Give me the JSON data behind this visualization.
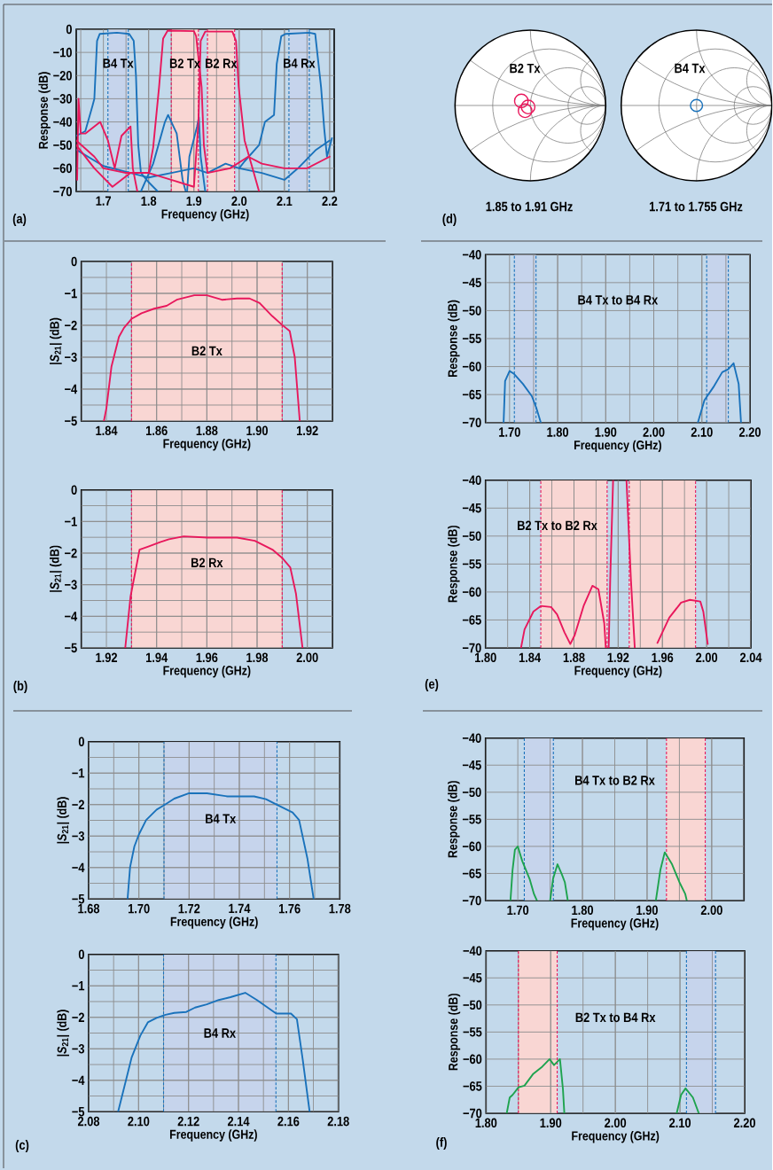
{
  "chart_data": [
    {
      "type": "line",
      "xlabel": "Frequency (GHz)",
      "ylabel": "Response (dB)",
      "xlim": [
        1.64,
        2.21
      ],
      "ylim": [
        -70,
        0
      ],
      "grid": true,
      "xticks": [
        1.7,
        1.8,
        1.9,
        {
          "value": 2,
          "label": "2.0"
        },
        2.1,
        2.2
      ],
      "yticks": [
        0,
        {
          "value": -10,
          "label": "−10"
        },
        {
          "value": -20,
          "label": "−20"
        },
        {
          "value": -30,
          "label": "−30"
        },
        {
          "value": -40,
          "label": "−40"
        },
        {
          "value": -50,
          "label": "−50"
        },
        {
          "value": -60,
          "label": "−60"
        },
        {
          "value": -70,
          "label": "−70"
        }
      ],
      "bands": [
        {
          "axis": "x",
          "from": 1.71,
          "to": 1.755,
          "label": "B4 Tx",
          "color": "#c6d4ec"
        },
        {
          "axis": "x",
          "from": 1.85,
          "to": 1.91,
          "label": "B2 Tx",
          "color": "#f9d6d3"
        },
        {
          "axis": "x",
          "from": 1.93,
          "to": 1.99,
          "label": "B2 Rx",
          "color": "#f9d6d3"
        },
        {
          "axis": "x",
          "from": 2.11,
          "to": 2.155,
          "label": "B4 Rx",
          "color": "#c6d4ec"
        }
      ],
      "ref_lines": [
        {
          "axis": "x",
          "value": 1.71,
          "color": "#1a72bb",
          "line_style": "dashed"
        },
        {
          "axis": "x",
          "value": 1.755,
          "color": "#1a72bb",
          "line_style": "dashed"
        },
        {
          "axis": "x",
          "value": 1.85,
          "color": "#e8185c",
          "line_style": "dashed"
        },
        {
          "axis": "x",
          "value": 1.91,
          "color": "#e8185c",
          "line_style": "dashed"
        },
        {
          "axis": "x",
          "value": 1.93,
          "color": "#e8185c",
          "line_style": "dashed"
        },
        {
          "axis": "x",
          "value": 1.99,
          "color": "#e8185c",
          "line_style": "dashed"
        },
        {
          "axis": "x",
          "value": 2.11,
          "color": "#1a72bb",
          "line_style": "dashed"
        },
        {
          "axis": "x",
          "value": 2.155,
          "color": "#1a72bb",
          "line_style": "dashed"
        }
      ],
      "series": [
        {
          "color": "#1a72bb",
          "x": [
            1.64,
            1.66,
            1.676,
            1.68,
            1.686,
            1.692,
            1.73,
            1.757,
            1.767,
            1.772,
            1.777,
            1.783,
            1.8,
            1.82
          ],
          "values": [
            -46,
            -44,
            -33,
            -30,
            -5,
            -2,
            -1.5,
            -2,
            -5,
            -20,
            -50,
            -62,
            -66,
            -70
          ]
        },
        {
          "color": "#1a72bb",
          "x": [
            1.64,
            1.7,
            1.76,
            1.8,
            1.85,
            1.9,
            1.93,
            1.97,
            2.0,
            2.012,
            2.044,
            2.057,
            2.077,
            2.083,
            2.093,
            2.103,
            2.155,
            2.168,
            2.181,
            2.188,
            2.194,
            2.205
          ],
          "values": [
            -52,
            -59,
            -62,
            -64,
            -62,
            -60,
            -62,
            -58,
            -60,
            -57,
            -50,
            -40,
            -37,
            -15,
            -3,
            -2,
            -1.5,
            -2,
            -25,
            -43,
            -55,
            -47
          ]
        },
        {
          "color": "#1a72bb",
          "x": [
            1.783,
            1.81,
            1.836,
            1.843,
            1.862,
            1.875,
            1.882
          ],
          "values": [
            -70,
            -58,
            -40,
            -37,
            -45,
            -65,
            -70
          ]
        },
        {
          "color": "#1a72bb",
          "x": [
            1.885,
            1.89,
            1.907,
            1.911,
            1.915,
            1.925
          ],
          "values": [
            -70,
            -55,
            -42,
            -38,
            -55,
            -70
          ]
        },
        {
          "color": "#1a72bb",
          "x": [
            2.0,
            2.05,
            2.1,
            2.13,
            2.17,
            2.2
          ],
          "values": [
            -60,
            -62,
            -65,
            -60,
            -52,
            -48
          ]
        },
        {
          "color": "#e8185c",
          "x": [
            1.64,
            1.68,
            1.7,
            1.75,
            1.8,
            1.81,
            1.823,
            1.832,
            1.842,
            1.9,
            1.905,
            1.917,
            1.922,
            1.93,
            1.98,
            2.02,
            2.05,
            2.1,
            2.15,
            2.2
          ],
          "values": [
            -48,
            -55,
            -60,
            -62,
            -62,
            -51,
            -25,
            -4,
            -0.6,
            -0.8,
            -3,
            -25,
            -50,
            -62,
            -60,
            -55,
            -58,
            -60,
            -60,
            -55
          ]
        },
        {
          "color": "#e8185c",
          "x": [
            1.64,
            1.68,
            1.72,
            1.76,
            1.8,
            1.85,
            1.9,
            1.91,
            1.915,
            1.925,
            1.985,
            1.993,
            1.999,
            2.012,
            2.031,
            2.044
          ],
          "values": [
            -50,
            -60,
            -68,
            -62,
            -62,
            -65,
            -68,
            -40,
            -5,
            -1,
            -1,
            -5,
            -25,
            -48,
            -61,
            -70
          ]
        },
        {
          "color": "#e8185c",
          "x": [
            1.642,
            1.645,
            1.65,
            1.66,
            1.693,
            1.71,
            1.725,
            1.74,
            1.76,
            1.765,
            1.775
          ],
          "values": [
            -65,
            -30,
            -45,
            -45,
            -40,
            -48,
            -60,
            -46,
            -42,
            -60,
            -70
          ]
        }
      ],
      "annotations": [
        "(a)"
      ]
    },
    {
      "type": "other",
      "annotations": [
        "B2 Tx",
        "1.85 to 1.91 GHz",
        "B4 Tx",
        "1.71 to 1.755 GHz",
        "(d)"
      ]
    },
    {
      "type": "line",
      "xlabel": "Frequency (GHz)",
      "ylabel": "|*S*$_{21}$| (dB)",
      "xlim": [
        1.83,
        1.93
      ],
      "ylim": [
        -5,
        0
      ],
      "grid": true,
      "xticks": [
        1.84,
        1.86,
        1.88,
        {
          "value": 1.9,
          "label": "1.90"
        },
        1.92
      ],
      "yticks": [
        0,
        {
          "value": -1,
          "label": "−1"
        },
        {
          "value": -2,
          "label": "−2"
        },
        {
          "value": -3,
          "label": "−3"
        },
        {
          "value": -4,
          "label": "−4"
        },
        {
          "value": -5,
          "label": "−5"
        }
      ],
      "bands": [
        {
          "axis": "x",
          "from": 1.85,
          "to": 1.91,
          "label": "B2 Tx",
          "color": "#f9d6d3"
        }
      ],
      "ref_lines": [
        {
          "axis": "x",
          "value": 1.85,
          "color": "#e8185c",
          "line_style": "dashed"
        },
        {
          "axis": "x",
          "value": 1.91,
          "color": "#e8185c",
          "line_style": "dashed"
        }
      ],
      "series": [
        {
          "color": "#e8185c",
          "x": [
            1.839,
            1.84,
            1.842,
            1.845,
            1.847,
            1.85,
            1.854,
            1.859,
            1.864,
            1.868,
            1.875,
            1.88,
            1.886,
            1.892,
            1.897,
            1.901,
            1.906,
            1.91,
            1.913,
            1.915,
            1.917
          ],
          "values": [
            -5,
            -4.6,
            -3.3,
            -2.36,
            -2.08,
            -1.8,
            -1.62,
            -1.48,
            -1.39,
            -1.2,
            -1.06,
            -1.06,
            -1.2,
            -1.16,
            -1.16,
            -1.3,
            -1.71,
            -1.99,
            -2.18,
            -3.0,
            -5
          ]
        }
      ]
    },
    {
      "type": "line",
      "xlabel": "Frequency (GHz)",
      "ylabel": "|*S*$_{21}$| (dB)",
      "xlim": [
        1.91,
        2.01
      ],
      "ylim": [
        -5,
        0
      ],
      "grid": true,
      "xticks": [
        1.92,
        1.94,
        1.96,
        1.98,
        {
          "value": 2,
          "label": "2.00"
        }
      ],
      "yticks": [
        0,
        {
          "value": -1,
          "label": "−1"
        },
        {
          "value": -2,
          "label": "−2"
        },
        {
          "value": -3,
          "label": "−3"
        },
        {
          "value": -4,
          "label": "−4"
        },
        {
          "value": -5,
          "label": "−5"
        }
      ],
      "bands": [
        {
          "axis": "x",
          "from": 1.93,
          "to": 1.99,
          "label": "B2 Rx",
          "color": "#f9d6d3"
        }
      ],
      "ref_lines": [
        {
          "axis": "x",
          "value": 1.93,
          "color": "#e8185c",
          "line_style": "dashed"
        },
        {
          "axis": "x",
          "value": 1.99,
          "color": "#e8185c",
          "line_style": "dashed"
        }
      ],
      "series": [
        {
          "color": "#e8185c",
          "x": [
            1.9275,
            1.9296,
            1.9332,
            1.9367,
            1.9414,
            1.9449,
            1.9508,
            1.9602,
            1.972,
            1.9791,
            1.9861,
            1.9902,
            1.9932,
            1.9955,
            1.9981
          ],
          "values": [
            -5,
            -3.38,
            -1.89,
            -1.79,
            -1.65,
            -1.56,
            -1.47,
            -1.51,
            -1.51,
            -1.61,
            -1.89,
            -2.17,
            -2.45,
            -3.29,
            -5
          ]
        }
      ],
      "annotations": [
        "(b)"
      ]
    },
    {
      "type": "line",
      "xlabel": "Frequency (GHz)",
      "ylabel": "Response (dB)",
      "xlim": [
        1.65,
        2.2
      ],
      "ylim": [
        -70,
        -40
      ],
      "grid": true,
      "xticks": [
        {
          "value": 1.7,
          "label": "1.70"
        },
        {
          "value": 1.8,
          "label": "1.80"
        },
        {
          "value": 1.9,
          "label": "1.90"
        },
        {
          "value": 2,
          "label": "2.00"
        },
        {
          "value": 2.1,
          "label": "2.10"
        },
        {
          "value": 2.2,
          "label": "2.20"
        }
      ],
      "yticks": [
        {
          "value": -40,
          "label": "−40"
        },
        {
          "value": -45,
          "label": "−45"
        },
        {
          "value": -50,
          "label": "−50"
        },
        {
          "value": -55,
          "label": "−55"
        },
        {
          "value": -60,
          "label": "−60"
        },
        {
          "value": -65,
          "label": "−65"
        },
        {
          "value": -70,
          "label": "−70"
        }
      ],
      "bands": [
        {
          "axis": "x",
          "from": 1.71,
          "to": 1.755,
          "color": "#c6d4ec"
        },
        {
          "axis": "x",
          "from": 2.11,
          "to": 2.155,
          "color": "#c6d4ec"
        }
      ],
      "ref_lines": [
        {
          "axis": "x",
          "value": 1.71,
          "color": "#1a72bb",
          "line_style": "dashed"
        },
        {
          "axis": "x",
          "value": 1.755,
          "color": "#1a72bb",
          "line_style": "dashed"
        },
        {
          "axis": "x",
          "value": 2.11,
          "color": "#1a72bb",
          "line_style": "dashed"
        },
        {
          "axis": "x",
          "value": 2.155,
          "color": "#1a72bb",
          "line_style": "dashed"
        }
      ],
      "series": [
        {
          "color": "#1a72bb",
          "x": [
            1.6876,
            1.6907,
            1.7,
            1.7093,
            1.7278,
            1.7464,
            1.7557,
            1.765,
            1.77,
            2.0917,
            2.1053,
            2.1238,
            2.1424,
            2.1547,
            2.1659,
            2.1765,
            2.1814
          ],
          "values": [
            -70,
            -62.6,
            -60.8,
            -61.3,
            -63.1,
            -65.3,
            -67.4,
            -70,
            null,
            -70,
            -66,
            -63.7,
            -61,
            -60.5,
            -59.4,
            -63.1,
            -70
          ]
        }
      ],
      "annotations": [
        "B4 Tx to B4 Rx"
      ]
    },
    {
      "type": "line",
      "xlabel": "Frequency (GHz)",
      "ylabel": "Response (dB)",
      "xlim": [
        1.8,
        2.04
      ],
      "ylim": [
        -70,
        -40
      ],
      "grid": true,
      "xticks": [
        {
          "value": 1.8,
          "label": "1.80"
        },
        1.84,
        1.88,
        1.92,
        1.96,
        {
          "value": 2,
          "label": "2.00"
        },
        2.04
      ],
      "yticks": [
        {
          "value": -40,
          "label": "−40"
        },
        {
          "value": -45,
          "label": "−45"
        },
        {
          "value": -50,
          "label": "−50"
        },
        {
          "value": -55,
          "label": "−55"
        },
        {
          "value": -60,
          "label": "−60"
        },
        {
          "value": -65,
          "label": "−65"
        },
        {
          "value": -70,
          "label": "−70"
        }
      ],
      "bands": [
        {
          "axis": "x",
          "from": 1.85,
          "to": 1.91,
          "color": "#f9d6d3"
        },
        {
          "axis": "x",
          "from": 1.93,
          "to": 1.99,
          "color": "#f9d6d3"
        }
      ],
      "ref_lines": [
        {
          "axis": "x",
          "value": 1.85,
          "color": "#e8185c",
          "line_style": "dashed"
        },
        {
          "axis": "x",
          "value": 1.91,
          "color": "#e8185c",
          "line_style": "dashed"
        },
        {
          "axis": "x",
          "value": 1.93,
          "color": "#e8185c",
          "line_style": "dashed"
        },
        {
          "axis": "x",
          "value": 1.99,
          "color": "#e8185c",
          "line_style": "dashed"
        }
      ],
      "series": [
        {
          "color": "#e8185c",
          "x": [
            1.8321,
            1.8353,
            1.8433,
            1.85,
            1.8593,
            1.8647,
            1.8714,
            1.8767,
            1.8807,
            1.8887,
            1.8967,
            1.9021,
            1.9074,
            1.9088,
            1.91,
            1.9114,
            1.9128,
            1.9154,
            1.92,
            1.9275,
            1.9315,
            1.935,
            1.94,
            1.9555,
            1.9662,
            1.9769,
            1.9849,
            1.9943,
            1.997,
            2.001
          ],
          "values": [
            -70,
            -66.7,
            -63.5,
            -62.5,
            -62.7,
            -64,
            -67.2,
            -69.3,
            -67.7,
            -62.5,
            -58.9,
            -59.5,
            -65.6,
            -70,
            null,
            -70,
            -57.7,
            -40,
            null,
            -40,
            -57.7,
            -70,
            null,
            -69.1,
            -64.6,
            -61.9,
            -61.4,
            -61.7,
            -63.5,
            -69.3
          ]
        }
      ],
      "annotations": [
        "B2 Tx to B2 Rx",
        "(e)"
      ]
    },
    {
      "type": "line",
      "xlabel": "Frequency (GHz)",
      "ylabel": "|*S*$_{21}$| (dB)",
      "xlim": [
        1.68,
        1.78
      ],
      "ylim": [
        -5,
        0
      ],
      "grid": true,
      "xticks": [
        1.68,
        {
          "value": 1.7,
          "label": "1.70"
        },
        1.72,
        1.74,
        1.76,
        1.78
      ],
      "yticks": [
        0,
        {
          "value": -1,
          "label": "−1"
        },
        {
          "value": -2,
          "label": "−2"
        },
        {
          "value": -3,
          "label": "−3"
        },
        {
          "value": -4,
          "label": "−4"
        },
        {
          "value": -5,
          "label": "−5"
        }
      ],
      "bands": [
        {
          "axis": "x",
          "from": 1.71,
          "to": 1.755,
          "label": "B4 Tx",
          "color": "#c6d4ec"
        }
      ],
      "ref_lines": [
        {
          "axis": "x",
          "value": 1.71,
          "color": "#1a72bb",
          "line_style": "dashed"
        },
        {
          "axis": "x",
          "value": 1.755,
          "color": "#1a72bb",
          "line_style": "dashed"
        }
      ],
      "series": [
        {
          "color": "#1a72bb",
          "x": [
            1.6955,
            1.6965,
            1.6982,
            1.7,
            1.7029,
            1.7071,
            1.71,
            1.7141,
            1.72,
            1.7271,
            1.7353,
            1.7459,
            1.7506,
            1.7553,
            1.7612,
            1.7638,
            1.7671,
            1.7696
          ],
          "values": [
            -5,
            -3.99,
            -3.33,
            -2.95,
            -2.49,
            -2.16,
            -2.02,
            -1.81,
            -1.64,
            -1.64,
            -1.74,
            -1.74,
            -1.83,
            -2.02,
            -2.25,
            -2.49,
            -3.71,
            -5
          ]
        }
      ]
    },
    {
      "type": "line",
      "xlabel": "Frequency (GHz)",
      "ylabel": "|*S*$_{21}$| (dB)",
      "xlim": [
        2.08,
        2.18
      ],
      "ylim": [
        -5,
        0
      ],
      "grid": true,
      "xticks": [
        2.08,
        {
          "value": 2.1,
          "label": "2.10"
        },
        2.12,
        2.14,
        2.16,
        2.18
      ],
      "yticks": [
        0,
        {
          "value": -1,
          "label": "−1"
        },
        {
          "value": -2,
          "label": "−2"
        },
        {
          "value": -3,
          "label": "−3"
        },
        {
          "value": -4,
          "label": "−4"
        },
        {
          "value": -5,
          "label": "−5"
        }
      ],
      "bands": [
        {
          "axis": "x",
          "from": 2.11,
          "to": 2.155,
          "label": "B4 Rx",
          "color": "#c6d4ec"
        }
      ],
      "ref_lines": [
        {
          "axis": "x",
          "value": 2.11,
          "color": "#1a72bb",
          "line_style": "dashed"
        },
        {
          "axis": "x",
          "value": 2.155,
          "color": "#1a72bb",
          "line_style": "dashed"
        }
      ],
      "series": [
        {
          "color": "#1a72bb",
          "x": [
            2.0918,
            2.0972,
            2.1007,
            2.1037,
            2.1072,
            2.1108,
            2.1143,
            2.1191,
            2.1226,
            2.1273,
            2.1321,
            2.1368,
            2.1427,
            2.1474,
            2.1551,
            2.161,
            2.1634,
            2.1657,
            2.1685
          ],
          "values": [
            -5,
            -3.28,
            -2.58,
            -2.16,
            -2.02,
            -1.92,
            -1.86,
            -1.83,
            -1.69,
            -1.59,
            -1.45,
            -1.36,
            -1.22,
            -1.45,
            -1.88,
            -1.88,
            -2.06,
            -3.33,
            -5
          ]
        }
      ],
      "annotations": [
        "(c)"
      ]
    },
    {
      "type": "line",
      "xlabel": "Frequency (GHz)",
      "ylabel": "Response (dB)",
      "xlim": [
        1.65,
        2.05
      ],
      "ylim": [
        -70,
        -40
      ],
      "grid": true,
      "xticks": [
        {
          "value": 1.7,
          "label": "1.70"
        },
        {
          "value": 1.8,
          "label": "1.80"
        },
        {
          "value": 1.9,
          "label": "1.90"
        },
        {
          "value": 2,
          "label": "2.00"
        }
      ],
      "yticks": [
        {
          "value": -40,
          "label": "−40"
        },
        {
          "value": -45,
          "label": "−45"
        },
        {
          "value": -50,
          "label": "−50"
        },
        {
          "value": -55,
          "label": "−55"
        },
        {
          "value": -60,
          "label": "−60"
        },
        {
          "value": -65,
          "label": "−65"
        },
        {
          "value": -70,
          "label": "−70"
        }
      ],
      "bands": [
        {
          "axis": "x",
          "from": 1.71,
          "to": 1.755,
          "color": "#c6d4ec"
        },
        {
          "axis": "x",
          "from": 1.93,
          "to": 1.99,
          "color": "#f9d6d3"
        }
      ],
      "ref_lines": [
        {
          "axis": "x",
          "value": 1.71,
          "color": "#1a72bb",
          "line_style": "dashed"
        },
        {
          "axis": "x",
          "value": 1.755,
          "color": "#1a72bb",
          "line_style": "dashed"
        },
        {
          "axis": "x",
          "value": 1.93,
          "color": "#e8185c",
          "line_style": "dashed"
        },
        {
          "axis": "x",
          "value": 1.99,
          "color": "#e8185c",
          "line_style": "dashed"
        }
      ],
      "series": [
        {
          "color": "#1ea34e",
          "x": [
            1.6886,
            1.6918,
            1.6955,
            1.7,
            1.7068,
            1.7182,
            1.725,
            1.7295,
            1.74,
            1.75,
            1.7545,
            1.7614,
            1.7682,
            1.7727,
            1.7773,
            1.85,
            1.9136,
            1.9205,
            1.9273,
            1.9386,
            1.95,
            1.9591,
            1.9614
          ],
          "values": [
            -70,
            -64.4,
            -60.6,
            -60,
            -62.7,
            -66,
            -68.8,
            -70,
            null,
            -70,
            -66,
            -63.3,
            -65.2,
            -66.6,
            -70,
            null,
            -70,
            -64.4,
            -61.1,
            -63.3,
            -66.6,
            -68.8,
            -70
          ]
        }
      ],
      "annotations": [
        "B4 Tx to B2 Rx"
      ]
    },
    {
      "type": "line",
      "xlabel": "Frequency (GHz)",
      "ylabel": "Response (dB)",
      "xlim": [
        1.8,
        2.2
      ],
      "ylim": [
        -70,
        -40
      ],
      "grid": true,
      "xticks": [
        {
          "value": 1.8,
          "label": "1.80"
        },
        {
          "value": 1.9,
          "label": "1.90"
        },
        {
          "value": 2,
          "label": "2.00"
        },
        {
          "value": 2.1,
          "label": "2.10"
        },
        {
          "value": 2.2,
          "label": "2.20"
        }
      ],
      "yticks": [
        {
          "value": -40,
          "label": "−40"
        },
        {
          "value": -45,
          "label": "−45"
        },
        {
          "value": -50,
          "label": "−50"
        },
        {
          "value": -55,
          "label": "−55"
        },
        {
          "value": -60,
          "label": "−60"
        },
        {
          "value": -65,
          "label": "−65"
        },
        {
          "value": -70,
          "label": "−70"
        }
      ],
      "bands": [
        {
          "axis": "x",
          "from": 1.85,
          "to": 1.91,
          "color": "#f9d6d3"
        },
        {
          "axis": "x",
          "from": 2.11,
          "to": 2.155,
          "color": "#c6d4ec"
        }
      ],
      "ref_lines": [
        {
          "axis": "x",
          "value": 1.85,
          "color": "#e8185c",
          "line_style": "dashed"
        },
        {
          "axis": "x",
          "value": 1.91,
          "color": "#e8185c",
          "line_style": "dashed"
        },
        {
          "axis": "x",
          "value": 2.11,
          "color": "#1a72bb",
          "line_style": "dashed"
        },
        {
          "axis": "x",
          "value": 2.155,
          "color": "#1a72bb",
          "line_style": "dashed"
        }
      ],
      "series": [
        {
          "color": "#1ea34e",
          "x": [
            1.832,
            1.8366,
            1.8411,
            1.8503,
            1.8594,
            1.8731,
            1.8869,
            1.8983,
            1.9051,
            1.9143,
            1.9189,
            1.9211,
            2.0,
            2.0949,
            2.1017,
            2.1086,
            2.12,
            2.1291
          ],
          "values": [
            -70,
            -67.1,
            -66.6,
            -65.2,
            -64.9,
            -62.7,
            -61.4,
            -60,
            -61.1,
            -60,
            -65.5,
            -70,
            null,
            -70,
            -66.6,
            -65.4,
            -67.1,
            -70
          ]
        }
      ],
      "annotations": [
        "B2 Tx to B4 Rx",
        "(f)"
      ]
    }
  ]
}
